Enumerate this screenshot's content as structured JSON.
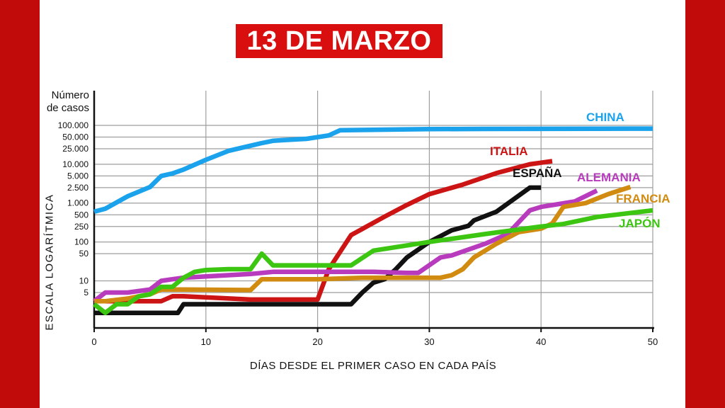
{
  "title": "13 DE MARZO",
  "colors": {
    "frame": "#c10a0a",
    "title_bg": "#d90f0f",
    "grid": "#9e9e9e",
    "axis": "#111111"
  },
  "chart_data": {
    "type": "line",
    "title": "13 DE MARZO",
    "ylabel_top": "Número de casos",
    "ylabel": "ESCALA LOGARÍTMICA",
    "xlabel": "DÍAS DESDE EL PRIMER CASO EN CADA PAÍS",
    "yscale": "log",
    "xlim": [
      0,
      50
    ],
    "xticks": [
      0,
      10,
      20,
      30,
      40,
      50
    ],
    "yticks": [
      {
        "v": 5,
        "label": "5"
      },
      {
        "v": 10,
        "label": "10"
      },
      {
        "v": 50,
        "label": "50"
      },
      {
        "v": 100,
        "label": "100"
      },
      {
        "v": 250,
        "label": "250"
      },
      {
        "v": 500,
        "label": "500"
      },
      {
        "v": 1000,
        "label": "1.000"
      },
      {
        "v": 2500,
        "label": "2.500"
      },
      {
        "v": 5000,
        "label": "5.000"
      },
      {
        "v": 10000,
        "label": "10.000"
      },
      {
        "v": 25000,
        "label": "25.000"
      },
      {
        "v": 50000,
        "label": "50.000"
      },
      {
        "v": 100000,
        "label": "100.000"
      }
    ],
    "grid": true,
    "series": [
      {
        "name": "CHINA",
        "color": "#1aa3ec",
        "x": [
          0,
          1,
          3,
          5,
          6,
          7,
          8,
          10,
          12,
          14,
          15,
          16,
          17,
          19,
          21,
          22,
          25,
          28,
          30,
          35,
          40,
          45,
          50
        ],
        "y": [
          600,
          720,
          1500,
          2600,
          5000,
          5800,
          7300,
          13000,
          22000,
          30000,
          35000,
          40000,
          42000,
          45000,
          55000,
          75000,
          77000,
          79000,
          80000,
          81000,
          81500,
          82000,
          82500
        ]
      },
      {
        "name": "ITALIA",
        "color": "#cc1414",
        "x": [
          0,
          6,
          7,
          8,
          14,
          20,
          21,
          23,
          26,
          28,
          30,
          33,
          36,
          39,
          41
        ],
        "y": [
          3,
          3,
          4,
          4,
          3.3,
          3.3,
          20,
          150,
          450,
          900,
          1700,
          3000,
          5900,
          10000,
          12000
        ]
      },
      {
        "name": "ESPAÑA",
        "color": "#111111",
        "x": [
          0,
          7.5,
          8,
          22,
          23,
          24,
          25,
          26,
          27,
          28,
          30,
          32,
          33.5,
          34,
          36,
          39,
          40
        ],
        "y": [
          1.5,
          1.5,
          2.5,
          2.5,
          2.5,
          5,
          9,
          11,
          20,
          40,
          100,
          200,
          260,
          360,
          600,
          2500,
          2500
        ]
      },
      {
        "name": "ALEMANIA",
        "color": "#b83bbd",
        "x": [
          0,
          1,
          3,
          5,
          6,
          7,
          8,
          10,
          12,
          14,
          15,
          16,
          18,
          20,
          25,
          28,
          29,
          31,
          32,
          35,
          37,
          39,
          40,
          43,
          45
        ],
        "y": [
          3,
          5,
          5,
          6,
          10,
          11,
          12,
          13,
          14,
          15,
          16,
          17,
          17,
          17,
          17,
          16,
          16,
          40,
          45,
          90,
          160,
          650,
          800,
          1100,
          2100
        ]
      },
      {
        "name": "FRANCIA",
        "color": "#d18b10",
        "x": [
          0,
          1,
          3,
          4,
          5,
          6,
          8,
          14,
          15,
          20,
          24,
          27,
          28,
          31,
          32,
          33,
          34,
          36,
          38,
          40,
          41,
          42,
          44,
          46,
          48
        ],
        "y": [
          3,
          3,
          3.5,
          4,
          4.5,
          6,
          6,
          5.8,
          11,
          11,
          12,
          12,
          12,
          12,
          14,
          20,
          40,
          90,
          180,
          220,
          300,
          800,
          1000,
          1700,
          2600
        ]
      },
      {
        "name": "JAPÓN",
        "color": "#3cc612",
        "x": [
          0,
          1,
          2,
          3,
          4,
          5,
          6,
          7,
          8,
          9,
          10,
          12,
          14,
          15,
          16,
          18,
          20,
          23,
          25,
          30,
          35,
          40,
          42,
          45,
          50
        ],
        "y": [
          2.5,
          1.5,
          2.5,
          2.5,
          4,
          4.5,
          7,
          7,
          12,
          17,
          19,
          20,
          20,
          50,
          25,
          25,
          25,
          25,
          60,
          100,
          160,
          250,
          290,
          440,
          650
        ]
      }
    ]
  }
}
